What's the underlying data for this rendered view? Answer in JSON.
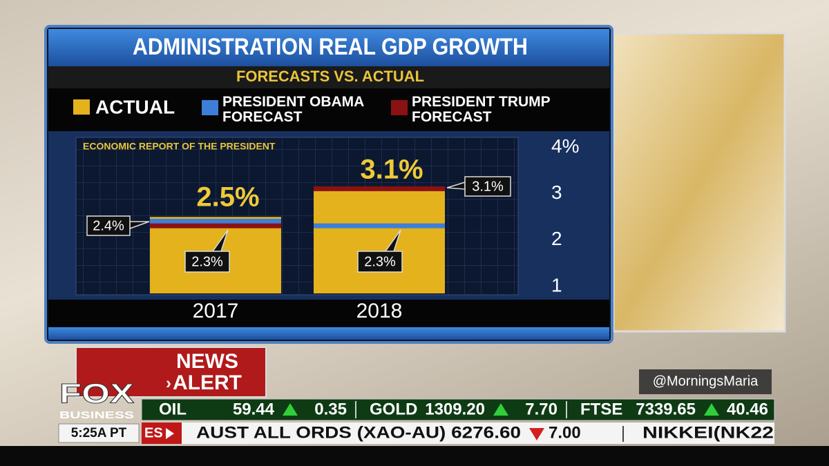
{
  "chart_data": {
    "type": "bar",
    "title": "ADMINISTRATION REAL GDP GROWTH",
    "subtitle": "FORECASTS VS. ACTUAL",
    "annotation": "ECONOMIC REPORT OF THE PRESIDENT",
    "categories": [
      "2017",
      "2018"
    ],
    "series": [
      {
        "name": "ACTUAL",
        "color": "#e3b21c",
        "values": [
          2.5,
          3.1
        ],
        "value_labels": [
          "2.5%",
          "3.1%"
        ]
      },
      {
        "name": "PRESIDENT OBAMA FORECAST",
        "color": "#3d7fd8",
        "values": [
          2.4,
          2.3
        ],
        "value_labels": [
          "2.4%",
          "2.3%"
        ]
      },
      {
        "name": "PRESIDENT TRUMP FORECAST",
        "color": "#8a1212",
        "values": [
          2.3,
          3.1
        ],
        "value_labels": [
          "2.3%",
          "3.1%"
        ]
      }
    ],
    "ylim": [
      0.85,
      4.2
    ],
    "yticks": [
      1,
      2,
      3,
      {
        "value": 4,
        "label": "4%"
      }
    ]
  },
  "news_alert": [
    "NEWS",
    "ALERT"
  ],
  "logo": [
    "FOX",
    "BUSINESS"
  ],
  "handle": "@MorningsMaria",
  "clock": "5:25A PT",
  "ticker": [
    {
      "name": "OIL",
      "price": "59.44",
      "change": "0.35"
    },
    {
      "name": "GOLD",
      "price": "1309.20",
      "change": "7.70"
    },
    {
      "name": "FTSE",
      "price": "7339.65",
      "change": "40.46"
    }
  ],
  "crawl": {
    "tag": "ES",
    "item": "AUST ALL ORDS (XAO-AU) 6276.60",
    "change": "7.00",
    "next": "NIKKEI(NK22"
  }
}
